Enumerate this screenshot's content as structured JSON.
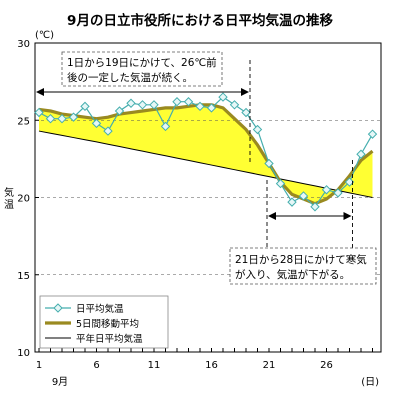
{
  "chart_data": {
    "type": "line",
    "title": "9月の日立市役所における日平均気温の推移",
    "y_unit": "(℃)",
    "ylabel": "気温",
    "x_unit": "(日)",
    "x_month_label": "9月",
    "ylim": [
      10,
      30
    ],
    "xlim": [
      1,
      30
    ],
    "yticks": [
      10,
      15,
      20,
      25,
      30
    ],
    "xticks": [
      1,
      6,
      11,
      16,
      21,
      26
    ],
    "x": [
      1,
      2,
      3,
      4,
      5,
      6,
      7,
      8,
      9,
      10,
      11,
      12,
      13,
      14,
      15,
      16,
      17,
      18,
      19,
      20,
      21,
      22,
      23,
      24,
      25,
      26,
      27,
      28,
      29,
      30
    ],
    "series": [
      {
        "name": "日平均気温",
        "values": [
          25.5,
          25.1,
          25.1,
          25.2,
          25.9,
          24.8,
          24.3,
          25.6,
          26.1,
          26.0,
          26.0,
          24.6,
          26.2,
          26.2,
          25.9,
          25.8,
          26.5,
          26.0,
          25.5,
          24.4,
          22.2,
          20.9,
          19.7,
          20.1,
          19.4,
          20.5,
          20.3,
          21.0,
          22.8,
          24.1
        ],
        "color": "#45aeae",
        "marker": "diamond"
      },
      {
        "name": "5日間移動平均",
        "values": [
          25.7,
          25.6,
          25.4,
          25.3,
          25.2,
          25.1,
          25.2,
          25.4,
          25.5,
          25.6,
          25.7,
          25.8,
          25.8,
          25.9,
          26.0,
          26.0,
          25.8,
          25.1,
          24.4,
          23.4,
          22.2,
          21.0,
          20.2,
          19.9,
          19.6,
          19.9,
          20.5,
          21.4,
          22.4,
          23.0
        ],
        "color": "#9a8a20",
        "line_width": "thick"
      },
      {
        "name": "平年日平均気温",
        "values": [
          24.3,
          24.16,
          24.02,
          23.88,
          23.74,
          23.6,
          23.45,
          23.3,
          23.15,
          23.0,
          22.85,
          22.7,
          22.55,
          22.4,
          22.25,
          22.1,
          21.95,
          21.8,
          21.65,
          21.5,
          21.35,
          21.2,
          21.05,
          20.9,
          20.75,
          20.6,
          20.45,
          20.3,
          20.15,
          20.0
        ],
        "color": "#000000"
      }
    ],
    "fill_between": {
      "upper": "5日間移動平均",
      "lower": "平年日平均気温",
      "color": "#ffff33"
    },
    "annotations": [
      {
        "lines": [
          "1日から19日にかけて、26℃前",
          "後の一定した気温が続く。"
        ],
        "x_span": [
          1,
          19
        ]
      },
      {
        "lines": [
          "21日から28日にかけて寒気",
          "が入り、気温が下がる。"
        ],
        "x_span": [
          21,
          28
        ]
      }
    ],
    "legend_position": "bottom-left",
    "grid": "horizontal dashed"
  }
}
